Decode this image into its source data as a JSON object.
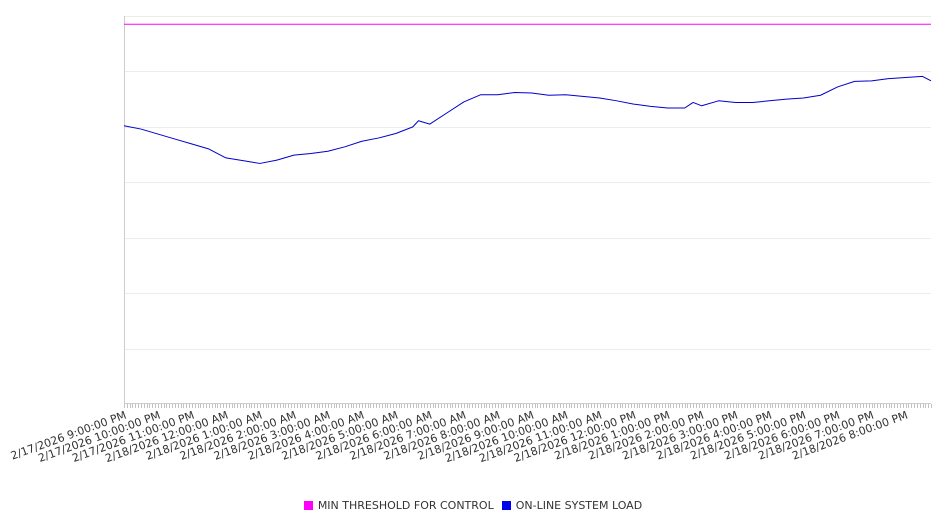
{
  "chart_data": {
    "type": "line",
    "title": "",
    "xlabel": "",
    "ylabel": "",
    "y_tick_labels_visible": false,
    "grid": "horizontal",
    "legend_placement": "bottom-center",
    "x_tick_labels": [
      "2/17/2026 9:00:00 PM",
      "2/17/2026 10:00:00 PM",
      "2/17/2026 11:00:00 PM",
      "2/18/2026 12:00:00 AM",
      "2/18/2026 1:00:00 AM",
      "2/18/2026 2:00:00 AM",
      "2/18/2026 3:00:00 AM",
      "2/18/2026 4:00:00 AM",
      "2/18/2026 5:00:00 AM",
      "2/18/2026 6:00:00 AM",
      "2/18/2026 7:00:00 AM",
      "2/18/2026 8:00:00 AM",
      "2/18/2026 9:00:00 AM",
      "2/18/2026 10:00:00 AM",
      "2/18/2026 11:00:00 AM",
      "2/18/2026 12:00:00 PM",
      "2/18/2026 1:00:00 PM",
      "2/18/2026 2:00:00 PM",
      "2/18/2026 3:00:00 PM",
      "2/18/2026 4:00:00 PM",
      "2/18/2026 5:00:00 PM",
      "2/18/2026 6:00:00 PM",
      "2/18/2026 7:00:00 PM",
      "2/18/2026 8:00:00 PM"
    ],
    "x_range": [
      "2/17/2026 9:00:00 PM",
      "2/18/2026 8:45:00 PM"
    ],
    "ylim": [
      0,
      7
    ],
    "series": [
      {
        "name": "MIN THRESHOLD FOR CONTROL",
        "color": "#ff00ff",
        "x": [
          "2/17/2026 9:00:00 PM",
          "2/18/2026 8:45:00 PM"
        ],
        "values": [
          6.85,
          6.85
        ]
      },
      {
        "name": "ON-LINE SYSTEM LOAD",
        "color": "#0000cc",
        "x": [
          "2/17/2026 9:00:00 PM",
          "2/17/2026 9:30:00 PM",
          "2/17/2026 10:00:00 PM",
          "2/17/2026 10:30:00 PM",
          "2/17/2026 11:00:00 PM",
          "2/17/2026 11:30:00 PM",
          "2/18/2026 12:00:00 AM",
          "2/18/2026 12:30:00 AM",
          "2/18/2026 1:00:00 AM",
          "2/18/2026 1:30:00 AM",
          "2/18/2026 2:00:00 AM",
          "2/18/2026 2:30:00 AM",
          "2/18/2026 3:00:00 AM",
          "2/18/2026 3:30:00 AM",
          "2/18/2026 4:00:00 AM",
          "2/18/2026 4:30:00 AM",
          "2/18/2026 5:00:00 AM",
          "2/18/2026 5:30:00 AM",
          "2/18/2026 5:40:00 AM",
          "2/18/2026 6:00:00 AM",
          "2/18/2026 6:30:00 AM",
          "2/18/2026 7:00:00 AM",
          "2/18/2026 7:30:00 AM",
          "2/18/2026 8:00:00 AM",
          "2/18/2026 8:30:00 AM",
          "2/18/2026 9:00:00 AM",
          "2/18/2026 9:30:00 AM",
          "2/18/2026 10:00:00 AM",
          "2/18/2026 10:30:00 AM",
          "2/18/2026 11:00:00 AM",
          "2/18/2026 11:30:00 AM",
          "2/18/2026 12:00:00 PM",
          "2/18/2026 12:30:00 PM",
          "2/18/2026 1:00:00 PM",
          "2/18/2026 1:30:00 PM",
          "2/18/2026 1:45:00 PM",
          "2/18/2026 2:00:00 PM",
          "2/18/2026 2:30:00 PM",
          "2/18/2026 3:00:00 PM",
          "2/18/2026 3:30:00 PM",
          "2/18/2026 4:00:00 PM",
          "2/18/2026 4:30:00 PM",
          "2/18/2026 5:00:00 PM",
          "2/18/2026 5:30:00 PM",
          "2/18/2026 6:00:00 PM",
          "2/18/2026 6:30:00 PM",
          "2/18/2026 7:00:00 PM",
          "2/18/2026 7:30:00 PM",
          "2/18/2026 8:00:00 PM",
          "2/18/2026 8:30:00 PM",
          "2/18/2026 8:45:00 PM"
        ],
        "values": [
          5.02,
          4.96,
          4.87,
          4.78,
          4.69,
          4.6,
          4.44,
          4.39,
          4.34,
          4.4,
          4.49,
          4.52,
          4.56,
          4.64,
          4.74,
          4.8,
          4.88,
          5.0,
          5.11,
          5.05,
          5.25,
          5.45,
          5.58,
          5.58,
          5.62,
          5.61,
          5.57,
          5.58,
          5.55,
          5.52,
          5.47,
          5.41,
          5.37,
          5.34,
          5.34,
          5.44,
          5.38,
          5.47,
          5.44,
          5.44,
          5.47,
          5.5,
          5.52,
          5.57,
          5.72,
          5.82,
          5.83,
          5.87,
          5.89,
          5.91,
          5.83
        ]
      }
    ]
  }
}
